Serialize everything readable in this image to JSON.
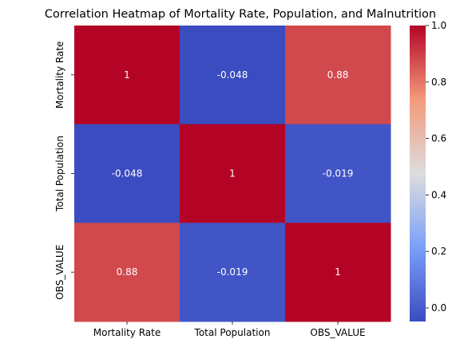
{
  "chart_data": {
    "type": "heatmap",
    "title": "Correlation Heatmap of Mortality Rate, Population, and Malnutrition",
    "x_categories": [
      "Mortality Rate",
      "Total Population",
      "OBS_VALUE"
    ],
    "y_categories": [
      "Mortality Rate",
      "Total Population",
      "OBS_VALUE"
    ],
    "values": [
      [
        1,
        -0.048,
        0.88
      ],
      [
        -0.048,
        1,
        -0.019
      ],
      [
        0.88,
        -0.019,
        1
      ]
    ],
    "annotations": [
      [
        "1",
        "-0.048",
        "0.88"
      ],
      [
        "-0.048",
        "1",
        "-0.019"
      ],
      [
        "0.88",
        "-0.019",
        "1"
      ]
    ],
    "colorbar": {
      "min": -0.048,
      "max": 1,
      "ticks": [
        0.0,
        0.2,
        0.4,
        0.6,
        0.8,
        1.0
      ],
      "tick_labels": [
        "0.0",
        "0.2",
        "0.4",
        "0.6",
        "0.8",
        "1.0"
      ]
    },
    "colormap": "coolwarm",
    "colormap_stops": [
      {
        "t": 0.0,
        "color": "#3b4cc0"
      },
      {
        "t": 0.25,
        "color": "#7b9ff9"
      },
      {
        "t": 0.5,
        "color": "#dddddd"
      },
      {
        "t": 0.75,
        "color": "#f49a7b"
      },
      {
        "t": 1.0,
        "color": "#b40426"
      }
    ],
    "xlabel": "",
    "ylabel": ""
  }
}
